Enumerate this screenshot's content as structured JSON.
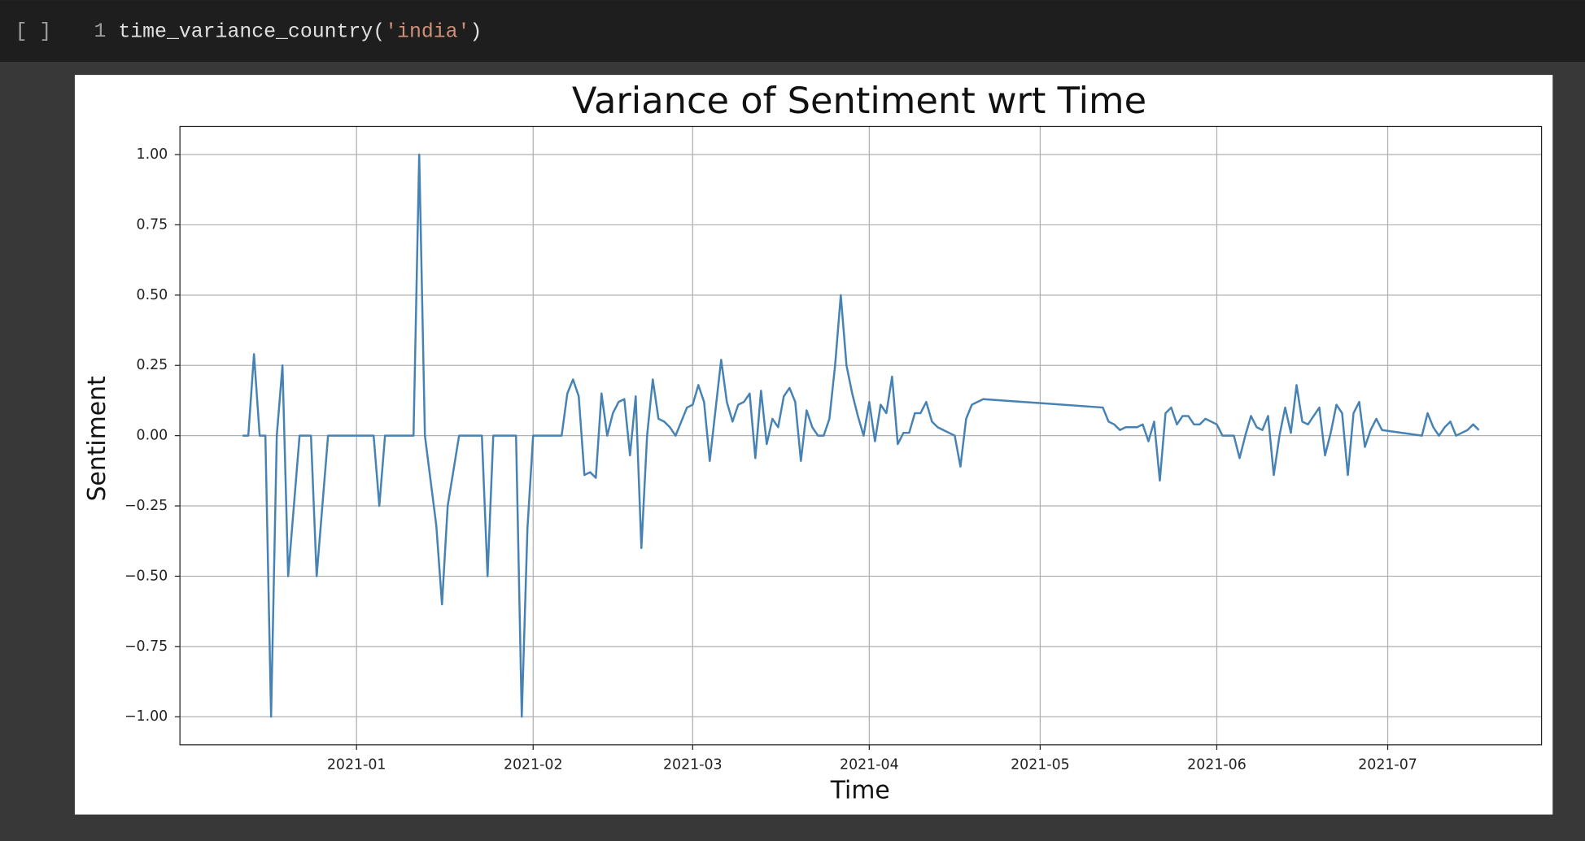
{
  "cell": {
    "prompt": "[ ]",
    "line_number": "1",
    "code": {
      "function": "time_variance_country(",
      "argument": "'india'",
      "close": ")"
    }
  },
  "chart_data": {
    "type": "line",
    "title": "Variance of Sentiment wrt Time",
    "x_label": "Time",
    "y_label": "Sentiment",
    "color": "#4682b4",
    "grid": true,
    "xlim": [
      "2020-12-01",
      "2021-07-28"
    ],
    "xticks": [
      {
        "value": "2021-01-01",
        "label": "2021-01"
      },
      {
        "value": "2021-02-01",
        "label": "2021-02"
      },
      {
        "value": "2021-03-01",
        "label": "2021-03"
      },
      {
        "value": "2021-04-01",
        "label": "2021-04"
      },
      {
        "value": "2021-05-01",
        "label": "2021-05"
      },
      {
        "value": "2021-06-01",
        "label": "2021-06"
      },
      {
        "value": "2021-07-01",
        "label": "2021-07"
      }
    ],
    "ylim": [
      -1.1,
      1.1
    ],
    "yticks": [
      {
        "value": -1,
        "label": "−1.00"
      },
      {
        "value": -0.75,
        "label": "−0.75"
      },
      {
        "value": -0.5,
        "label": "−0.50"
      },
      {
        "value": -0.25,
        "label": "−0.25"
      },
      {
        "value": 0,
        "label": "0.00"
      },
      {
        "value": 0.25,
        "label": "0.25"
      },
      {
        "value": 0.5,
        "label": "0.50"
      },
      {
        "value": 0.75,
        "label": "0.75"
      },
      {
        "value": 1,
        "label": "1.00"
      }
    ],
    "x": [
      "2020-12-12",
      "2020-12-13",
      "2020-12-14",
      "2020-12-15",
      "2020-12-16",
      "2020-12-17",
      "2020-12-18",
      "2020-12-19",
      "2020-12-20",
      "2020-12-22",
      "2020-12-24",
      "2020-12-25",
      "2020-12-27",
      "2021-01-04",
      "2021-01-05",
      "2021-01-06",
      "2021-01-11",
      "2021-01-12",
      "2021-01-13",
      "2021-01-15",
      "2021-01-16",
      "2021-01-17",
      "2021-01-19",
      "2021-01-23",
      "2021-01-24",
      "2021-01-25",
      "2021-01-29",
      "2021-01-30",
      "2021-01-31",
      "2021-02-01",
      "2021-02-06",
      "2021-02-07",
      "2021-02-08",
      "2021-02-09",
      "2021-02-10",
      "2021-02-11",
      "2021-02-12",
      "2021-02-13",
      "2021-02-14",
      "2021-02-15",
      "2021-02-16",
      "2021-02-17",
      "2021-02-18",
      "2021-02-19",
      "2021-02-20",
      "2021-02-21",
      "2021-02-22",
      "2021-02-23",
      "2021-02-24",
      "2021-02-25",
      "2021-02-26",
      "2021-02-27",
      "2021-02-28",
      "2021-03-01",
      "2021-03-02",
      "2021-03-03",
      "2021-03-04",
      "2021-03-06",
      "2021-03-07",
      "2021-03-08",
      "2021-03-09",
      "2021-03-10",
      "2021-03-11",
      "2021-03-12",
      "2021-03-13",
      "2021-03-14",
      "2021-03-15",
      "2021-03-16",
      "2021-03-17",
      "2021-03-18",
      "2021-03-19",
      "2021-03-20",
      "2021-03-21",
      "2021-03-22",
      "2021-03-23",
      "2021-03-24",
      "2021-03-25",
      "2021-03-26",
      "2021-03-27",
      "2021-03-28",
      "2021-03-29",
      "2021-03-30",
      "2021-03-31",
      "2021-04-01",
      "2021-04-02",
      "2021-04-03",
      "2021-04-04",
      "2021-04-05",
      "2021-04-06",
      "2021-04-07",
      "2021-04-08",
      "2021-04-09",
      "2021-04-10",
      "2021-04-11",
      "2021-04-12",
      "2021-04-13",
      "2021-04-14",
      "2021-04-15",
      "2021-04-16",
      "2021-04-17",
      "2021-04-18",
      "2021-04-19",
      "2021-04-20",
      "2021-04-21",
      "2021-05-12",
      "2021-05-13",
      "2021-05-14",
      "2021-05-15",
      "2021-05-16",
      "2021-05-17",
      "2021-05-18",
      "2021-05-19",
      "2021-05-20",
      "2021-05-21",
      "2021-05-22",
      "2021-05-23",
      "2021-05-24",
      "2021-05-25",
      "2021-05-26",
      "2021-05-27",
      "2021-05-28",
      "2021-05-29",
      "2021-05-30",
      "2021-06-01",
      "2021-06-02",
      "2021-06-03",
      "2021-06-04",
      "2021-06-05",
      "2021-06-06",
      "2021-06-07",
      "2021-06-08",
      "2021-06-09",
      "2021-06-10",
      "2021-06-11",
      "2021-06-12",
      "2021-06-13",
      "2021-06-14",
      "2021-06-15",
      "2021-06-16",
      "2021-06-17",
      "2021-06-18",
      "2021-06-19",
      "2021-06-20",
      "2021-06-21",
      "2021-06-22",
      "2021-06-23",
      "2021-06-24",
      "2021-06-25",
      "2021-06-26",
      "2021-06-27",
      "2021-06-28",
      "2021-06-29",
      "2021-06-30",
      "2021-07-07",
      "2021-07-08",
      "2021-07-09",
      "2021-07-10",
      "2021-07-11",
      "2021-07-12",
      "2021-07-13",
      "2021-07-14",
      "2021-07-15",
      "2021-07-16",
      "2021-07-17"
    ],
    "values": [
      0,
      0,
      0.29,
      0,
      0,
      -1,
      0,
      0.25,
      -0.5,
      0,
      0,
      -0.5,
      0,
      0,
      -0.25,
      0,
      0,
      1,
      0,
      -0.32,
      -0.6,
      -0.25,
      0,
      0,
      -0.5,
      0,
      0,
      -1,
      -0.33,
      0,
      0,
      0.15,
      0.2,
      0.14,
      -0.14,
      -0.13,
      -0.15,
      0.15,
      0,
      0.08,
      0.12,
      0.13,
      -0.07,
      0.14,
      -0.4,
      0,
      0.2,
      0.06,
      0.05,
      0.03,
      0,
      0.05,
      0.1,
      0.11,
      0.18,
      0.12,
      -0.09,
      0.27,
      0.12,
      0.05,
      0.11,
      0.12,
      0.15,
      -0.08,
      0.16,
      -0.03,
      0.06,
      0.03,
      0.14,
      0.17,
      0.12,
      -0.09,
      0.09,
      0.03,
      0,
      0,
      0.06,
      0.25,
      0.5,
      0.25,
      0.15,
      0.07,
      0,
      0.12,
      -0.02,
      0.11,
      0.08,
      0.21,
      -0.03,
      0.01,
      0.01,
      0.08,
      0.08,
      0.12,
      0.05,
      0.03,
      0.02,
      0.01,
      0,
      -0.11,
      0.06,
      0.11,
      0.12,
      0.13,
      0.1,
      0.05,
      0.04,
      0.02,
      0.03,
      0.03,
      0.03,
      0.04,
      -0.02,
      0.05,
      -0.16,
      0.08,
      0.1,
      0.04,
      0.07,
      0.07,
      0.04,
      0.04,
      0.06,
      0.04,
      0,
      0,
      0,
      -0.08,
      0,
      0.07,
      0.03,
      0.02,
      0.07,
      -0.14,
      0,
      0.1,
      0.01,
      0.18,
      0.05,
      0.04,
      0.07,
      0.1,
      -0.07,
      0.01,
      0.11,
      0.08,
      -0.14,
      0.08,
      0.12,
      -0.04,
      0.02,
      0.06,
      0.02,
      0,
      0.08,
      0.03,
      0,
      0.03,
      0.05,
      0,
      0.01,
      0.02,
      0.04,
      0.02
    ]
  }
}
